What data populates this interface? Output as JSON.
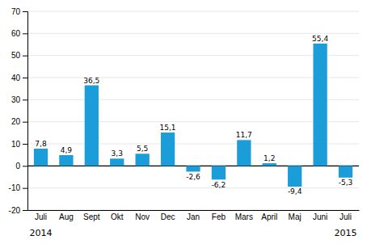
{
  "chart_data": {
    "type": "bar",
    "categories": [
      "Juli",
      "Aug",
      "Sept",
      "Okt",
      "Nov",
      "Dec",
      "Jan",
      "Feb",
      "Mars",
      "April",
      "Maj",
      "Juni",
      "Juli"
    ],
    "values": [
      7.8,
      4.9,
      36.5,
      3.3,
      5.5,
      15.1,
      -2.6,
      -6.2,
      11.7,
      1.2,
      -9.4,
      55.4,
      -5.3
    ],
    "value_labels": [
      "7,8",
      "4,9",
      "36,5",
      "3,3",
      "5,5",
      "15,1",
      "-2,6",
      "-6,2",
      "11,7",
      "1,2",
      "-9,4",
      "55,4",
      "-5,3"
    ],
    "data_labels": true,
    "color": "#1b9dd9",
    "ylim": [
      -20,
      70
    ],
    "yticks": [
      -20,
      -10,
      0,
      10,
      20,
      30,
      40,
      50,
      60,
      70
    ],
    "grid": true,
    "annotations": [
      {
        "text": "2014",
        "x": 0
      },
      {
        "text": "2015",
        "x": 12
      }
    ]
  }
}
